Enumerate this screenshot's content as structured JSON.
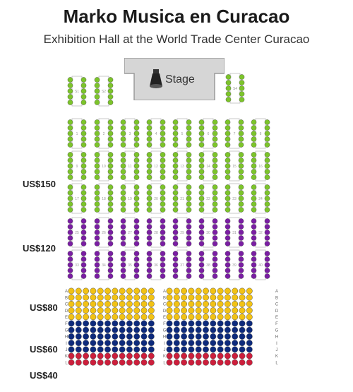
{
  "event": {
    "title": "Marko Musica en Curacao",
    "venue": "Exhibition Hall at the World Trade Center Curacao"
  },
  "stage": {
    "label": "Stage",
    "icon": "spotlight-icon"
  },
  "colors": {
    "green": "#7cc42a",
    "purple": "#7a1ea3",
    "yellow": "#f2c214",
    "navy": "#0d2a7c",
    "red": "#cc1f3c",
    "stage_fill": "#d6d6d6"
  },
  "price_tiers": [
    {
      "label": "US$150",
      "color": "green"
    },
    {
      "label": "US$120",
      "color": "purple"
    },
    {
      "label": "US$80",
      "color": "yellow"
    },
    {
      "label": "US$60",
      "color": "navy"
    },
    {
      "label": "US$40",
      "color": "red"
    }
  ],
  "tables": {
    "near_stage": [
      "S1",
      "S2",
      "S4"
    ],
    "rows": [
      [
        "1",
        "2",
        "3",
        "4",
        "5",
        "6",
        "7",
        "8"
      ],
      [
        "9",
        "10",
        "11",
        "12",
        "13",
        "14",
        "15",
        "16"
      ],
      [
        "17",
        "18",
        "19",
        "20",
        "21",
        "22",
        "23",
        "24"
      ],
      [
        "25",
        "26",
        "27",
        "28",
        "29",
        "30",
        "31",
        "32"
      ],
      [
        "33",
        "34",
        "35",
        "36",
        "37",
        "38",
        "39",
        "40"
      ]
    ]
  },
  "seat_rows": [
    {
      "letter": "A",
      "color": "yellow"
    },
    {
      "letter": "B",
      "color": "yellow"
    },
    {
      "letter": "C",
      "color": "yellow"
    },
    {
      "letter": "D",
      "color": "yellow"
    },
    {
      "letter": "E",
      "color": "yellow"
    },
    {
      "letter": "F",
      "color": "navy"
    },
    {
      "letter": "G",
      "color": "navy"
    },
    {
      "letter": "H",
      "color": "navy"
    },
    {
      "letter": "I",
      "color": "navy"
    },
    {
      "letter": "J",
      "color": "navy"
    },
    {
      "letter": "K",
      "color": "red"
    },
    {
      "letter": "L",
      "color": "red"
    }
  ],
  "seats_per_block": 12
}
